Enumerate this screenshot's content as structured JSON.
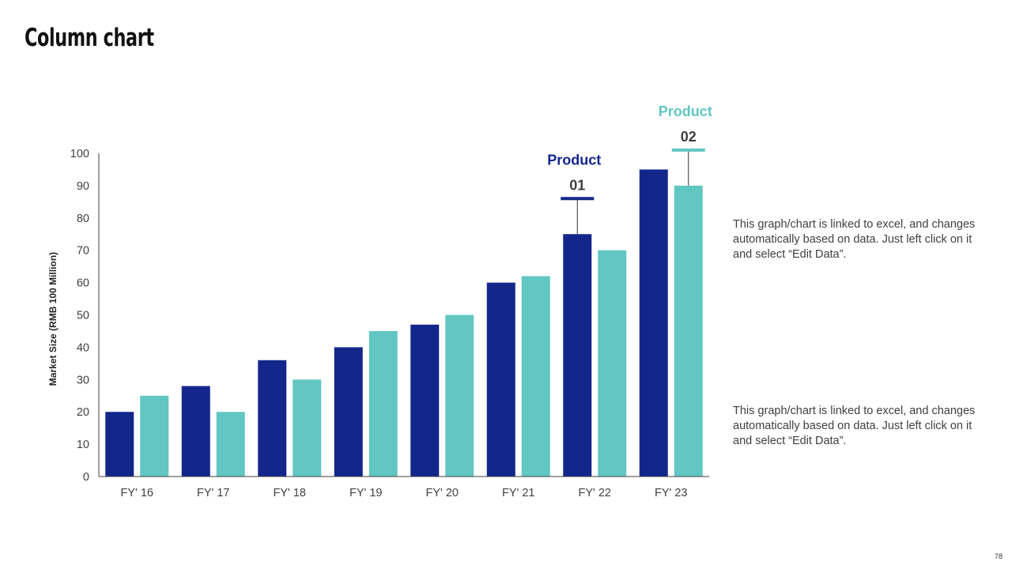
{
  "slide": {
    "title": "Column chart",
    "page_number": "78"
  },
  "notes": [
    "This graph/chart is linked to excel, and changes automatically based on data. Just left click on it and select “Edit Data”.",
    "This graph/chart is linked to excel, and changes automatically based on data. Just left click on it and select “Edit Data”."
  ],
  "colors": {
    "series1": "#13278b",
    "series2": "#62c6c3",
    "axis": "#404040",
    "tick_label": "#404040"
  },
  "chart_data": {
    "type": "bar",
    "title": "",
    "xlabel": "",
    "ylabel": "Market Size (RMB 100 Million)",
    "ylim": [
      0,
      100
    ],
    "yticks": [
      0,
      10,
      20,
      30,
      40,
      50,
      60,
      70,
      80,
      90,
      100
    ],
    "grid": false,
    "categories": [
      "FY' 16",
      "FY' 17",
      "FY' 18",
      "FY' 19",
      "FY' 20",
      "FY' 21",
      "FY' 22",
      "FY' 23"
    ],
    "series": [
      {
        "name": "Product 01",
        "values": [
          20,
          28,
          36,
          40,
          47,
          60,
          75,
          95
        ]
      },
      {
        "name": "Product 02",
        "values": [
          25,
          20,
          30,
          45,
          50,
          62,
          70,
          90
        ]
      }
    ],
    "annotations": [
      {
        "series": 0,
        "category": "FY' 22",
        "label": "Product",
        "number": "01"
      },
      {
        "series": 1,
        "category": "FY' 23",
        "label": "Product",
        "number": "02"
      }
    ]
  }
}
